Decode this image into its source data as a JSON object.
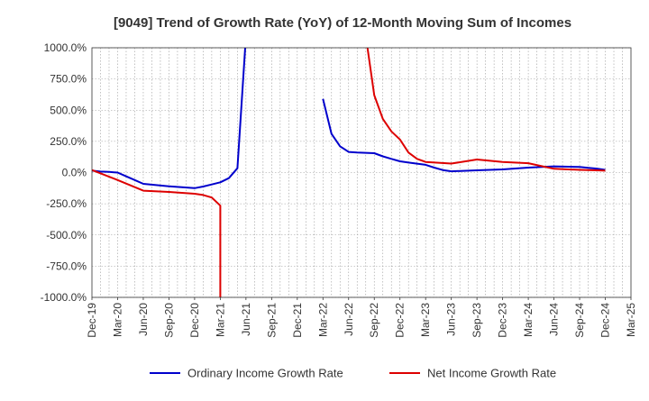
{
  "chart_data": {
    "type": "line",
    "title": "[9049]  Trend of Growth Rate (YoY) of 12-Month Moving Sum of Incomes",
    "xlabel": "",
    "ylabel": "",
    "ylim": [
      -1000,
      1000
    ],
    "y_ticks": [
      1000,
      750,
      500,
      250,
      0,
      -250,
      -500,
      -750,
      -1000
    ],
    "y_tick_labels": [
      "1000.0%",
      "750.0%",
      "500.0%",
      "250.0%",
      "0.0%",
      "-250.0%",
      "-500.0%",
      "-750.0%",
      "-1000.0%"
    ],
    "x_tick_labels": [
      "Dec-19",
      "Mar-20",
      "Jun-20",
      "Sep-20",
      "Dec-20",
      "Mar-21",
      "Jun-21",
      "Sep-21",
      "Dec-21",
      "Mar-22",
      "Jun-22",
      "Sep-22",
      "Dec-22",
      "Mar-23",
      "Jun-23",
      "Sep-23",
      "Dec-23",
      "Mar-24",
      "Jun-24",
      "Sep-24",
      "Dec-24",
      "Mar-25"
    ],
    "grid": true,
    "legend_position": "bottom",
    "series": [
      {
        "name": "Ordinary Income Growth Rate",
        "color": "#0000cc",
        "points": [
          [
            "Dec-19",
            15
          ],
          [
            "Jan-20",
            8
          ],
          [
            "Feb-20",
            5
          ],
          [
            "Mar-20",
            0
          ],
          [
            "Apr-20",
            -30
          ],
          [
            "May-20",
            -60
          ],
          [
            "Jun-20",
            -90
          ],
          [
            "Sep-20",
            -110
          ],
          [
            "Dec-20",
            -125
          ],
          [
            "Jan-21",
            -112
          ],
          [
            "Feb-21",
            -95
          ],
          [
            "Mar-21",
            -78
          ],
          [
            "Apr-21",
            -45
          ],
          [
            "May-21",
            35
          ],
          [
            "Jun-21",
            1100
          ],
          null,
          [
            "Mar-22",
            590
          ],
          [
            "Apr-22",
            310
          ],
          [
            "May-22",
            210
          ],
          [
            "Jun-22",
            165
          ],
          [
            "Jul-22",
            160
          ],
          [
            "Sep-22",
            155
          ],
          [
            "Oct-22",
            130
          ],
          [
            "Nov-22",
            110
          ],
          [
            "Dec-22",
            90
          ],
          [
            "Jan-23",
            80
          ],
          [
            "Mar-23",
            62
          ],
          [
            "Apr-23",
            40
          ],
          [
            "May-23",
            20
          ],
          [
            "Jun-23",
            10
          ],
          [
            "Sep-23",
            18
          ],
          [
            "Dec-23",
            25
          ],
          [
            "Mar-24",
            40
          ],
          [
            "Jun-24",
            50
          ],
          [
            "Sep-24",
            45
          ],
          [
            "Oct-24",
            38
          ],
          [
            "Nov-24",
            32
          ],
          [
            "Dec-24",
            22
          ]
        ]
      },
      {
        "name": "Net Income Growth Rate",
        "color": "#dd0000",
        "points": [
          [
            "Dec-19",
            20
          ],
          [
            "Mar-20",
            -60
          ],
          [
            "Jun-20",
            -145
          ],
          [
            "Sep-20",
            -155
          ],
          [
            "Dec-20",
            -170
          ],
          [
            "Jan-21",
            -180
          ],
          [
            "Feb-21",
            -200
          ],
          [
            "Mar-21",
            -265
          ],
          [
            "Mar-21",
            -1100
          ],
          null,
          [
            "Aug-22",
            1100
          ],
          [
            "Sep-22",
            620
          ],
          [
            "Oct-22",
            430
          ],
          [
            "Nov-22",
            330
          ],
          [
            "Dec-22",
            265
          ],
          [
            "Jan-23",
            160
          ],
          [
            "Feb-23",
            110
          ],
          [
            "Mar-23",
            85
          ],
          [
            "Jun-23",
            72
          ],
          [
            "Sep-23",
            105
          ],
          [
            "Dec-23",
            85
          ],
          [
            "Mar-24",
            75
          ],
          [
            "Jun-24",
            30
          ],
          [
            "Sep-24",
            22
          ],
          [
            "Oct-24",
            20
          ],
          [
            "Nov-24",
            18
          ],
          [
            "Dec-24",
            15
          ]
        ]
      }
    ]
  }
}
